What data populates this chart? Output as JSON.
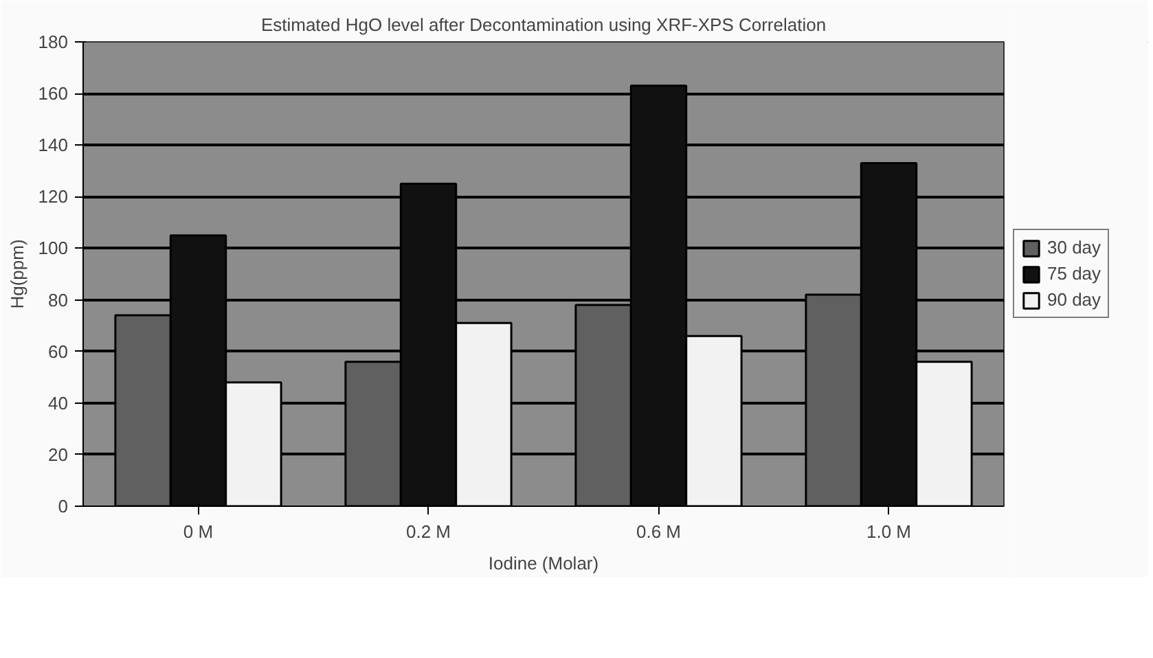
{
  "chart_data": {
    "type": "bar",
    "title": "Estimated HgO level after Decontamination using XRF-XPS Correlation",
    "xlabel": "Iodine (Molar)",
    "ylabel": "Hg(ppm)",
    "categories": [
      "0 M",
      "0.2 M",
      "0.6 M",
      "1.0 M"
    ],
    "series": [
      {
        "name": "30 day",
        "color": "#606060",
        "values": [
          74,
          56,
          78,
          82
        ]
      },
      {
        "name": "75 day",
        "color": "#111111",
        "values": [
          105,
          125,
          163,
          133
        ]
      },
      {
        "name": "90 day",
        "color": "#f2f2f2",
        "values": [
          48,
          71,
          66,
          56
        ]
      }
    ],
    "ylim": [
      0,
      180
    ],
    "yticks": [
      0,
      20,
      40,
      60,
      80,
      100,
      120,
      140,
      160,
      180
    ],
    "grid": "y",
    "legend": "right"
  }
}
